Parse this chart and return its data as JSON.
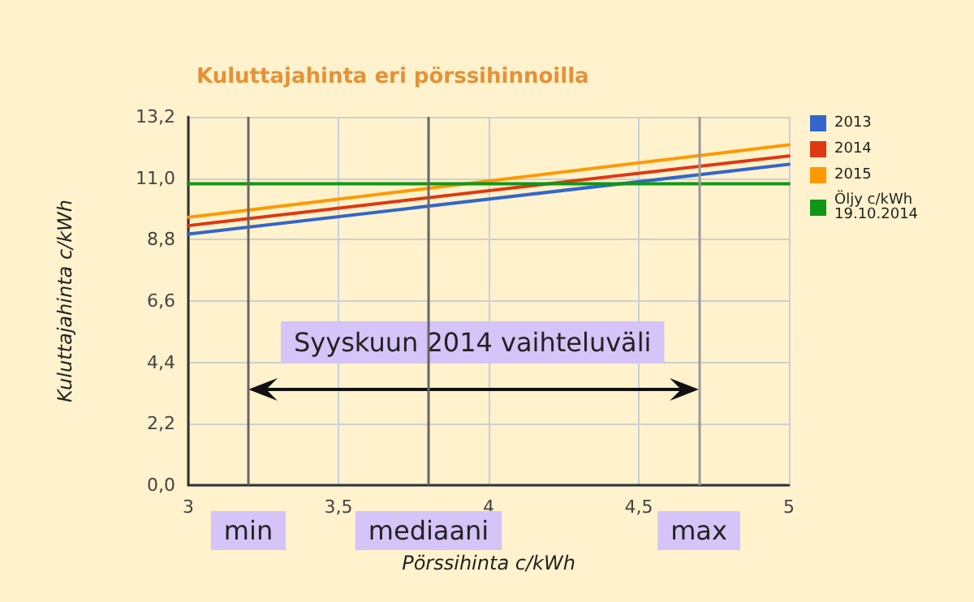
{
  "chart_data": {
    "type": "line",
    "title": "Kuluttajahinta eri pörssihinnoilla",
    "xlabel": "Pörssihinta c/kWh",
    "ylabel": "Kuluttajahinta c/kWh",
    "x": [
      3,
      5
    ],
    "series": [
      {
        "name": "2013",
        "color": "#3366cc",
        "values": [
          9.0,
          11.5
        ]
      },
      {
        "name": "2014",
        "color": "#dc3912",
        "values": [
          9.3,
          11.8
        ]
      },
      {
        "name": "2015",
        "color": "#ff9900",
        "values": [
          9.6,
          12.2
        ]
      },
      {
        "name": "Öljy c/kWh 19.10.2014",
        "color": "#109618",
        "values": [
          10.8,
          10.8
        ]
      }
    ],
    "xlim": [
      3,
      5
    ],
    "xticks": [
      3,
      {
        "value": 3.5,
        "label": "3,5"
      },
      4,
      {
        "value": 4.5,
        "label": "4,5"
      },
      5
    ],
    "ylim": [
      0,
      13.2
    ],
    "yticks": [
      {
        "value": 0,
        "label": "0,0"
      },
      {
        "value": 2.2,
        "label": "2,2"
      },
      {
        "value": 4.4,
        "label": "4,4"
      },
      {
        "value": 6.6,
        "label": "6,6"
      },
      {
        "value": 8.8,
        "label": "8,8"
      },
      {
        "value": 11,
        "label": "11,0"
      },
      {
        "value": 13.2,
        "label": "13,2"
      }
    ],
    "ref_lines": [
      {
        "axis": "x",
        "value": 3.2,
        "label": "min",
        "color": "#666666"
      },
      {
        "axis": "x",
        "value": 3.8,
        "label": "mediaani",
        "color": "#666666"
      },
      {
        "axis": "x",
        "value": 4.7,
        "label": "max",
        "color": "#999999"
      }
    ],
    "annotations": [
      "Syyskuun 2014 vaihteluväli"
    ],
    "grid": true,
    "legend": "right",
    "marker": "none",
    "line_style": "solid"
  }
}
